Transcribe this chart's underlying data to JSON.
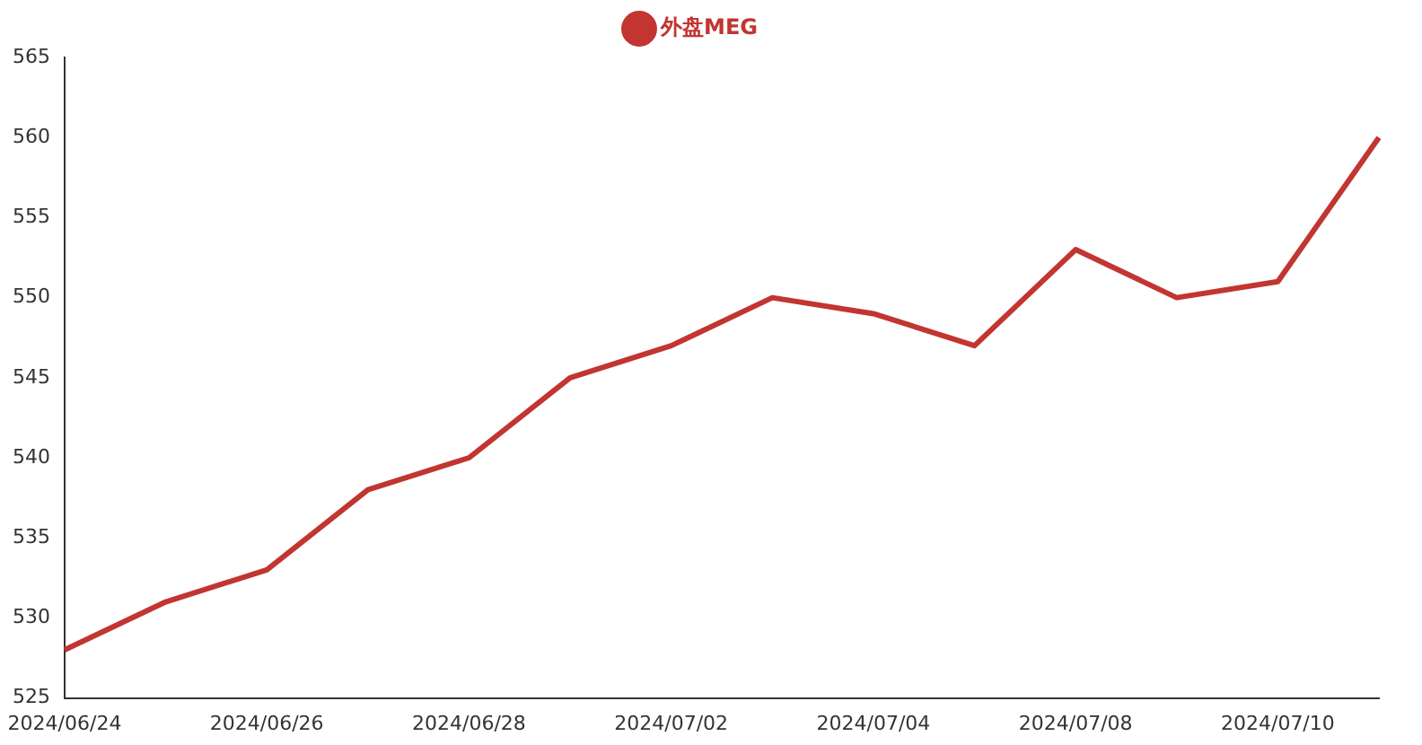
{
  "chart_data": {
    "type": "line",
    "categories": [
      "2024/06/24",
      null,
      "2024/06/26",
      null,
      "2024/06/28",
      null,
      "2024/07/02",
      null,
      "2024/07/04",
      null,
      "2024/07/08",
      null,
      "2024/07/10",
      null
    ],
    "series": [
      {
        "name": "外盘MEG",
        "color": "#c23531",
        "values": [
          528,
          531,
          533,
          538,
          540,
          545,
          547,
          550,
          549,
          547,
          553,
          550,
          551,
          560
        ]
      }
    ],
    "ylim": [
      525,
      565
    ],
    "yticks": [
      525,
      530,
      535,
      540,
      545,
      550,
      555,
      560,
      565
    ],
    "grid": false,
    "legend": "top",
    "marker": "none",
    "line_style": "solid"
  }
}
